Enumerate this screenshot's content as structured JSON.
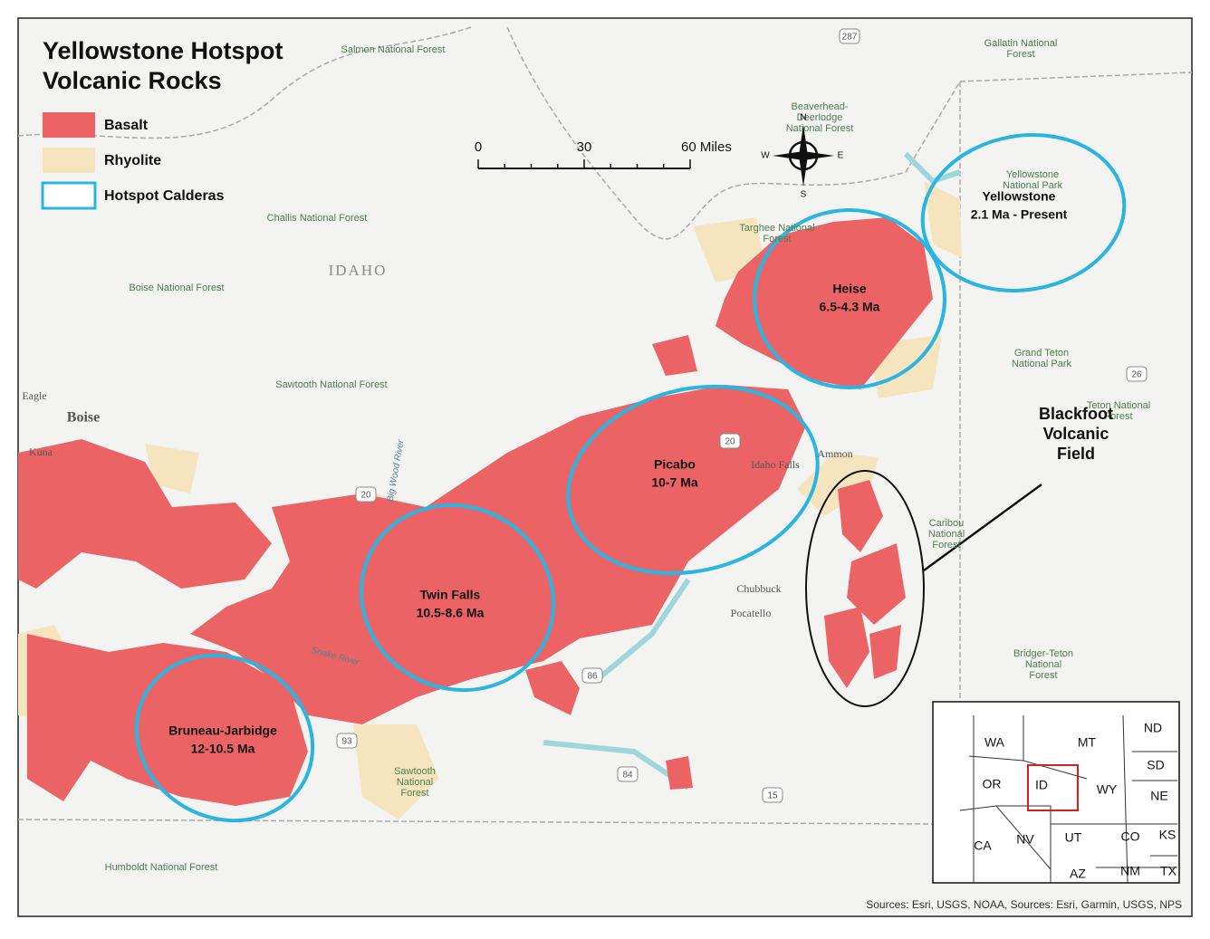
{
  "title": [
    "Yellowstone Hotspot",
    "Volcanic Rocks"
  ],
  "legend": [
    "Basalt",
    "Rhyolite",
    "Hotspot Calderas"
  ],
  "scale_bar": [
    "0",
    "30",
    "60 Miles"
  ],
  "compass": {
    "n": "N",
    "s": "S",
    "w": "W",
    "e": "E"
  },
  "calderas": [
    {
      "name": "Yellowstone",
      "age": "2.1 Ma - Present"
    },
    {
      "name": "Heise",
      "age": "6.5-4.3 Ma"
    },
    {
      "name": "Picabo",
      "age": "10-7 Ma"
    },
    {
      "name": "Twin Falls",
      "age": "10.5-8.6 Ma"
    },
    {
      "name": "Bruneau-Jarbidge",
      "age": "12-10.5 Ma"
    }
  ],
  "volcanic_field": [
    "Blackfoot",
    "Volcanic",
    "Field"
  ],
  "places": [
    [
      "Salmon National Forest"
    ],
    [
      "Challis National Forest"
    ],
    [
      "Boise National Forest"
    ],
    [
      "Sawtooth National Forest"
    ],
    [
      "IDAHO"
    ],
    [
      "Eagle"
    ],
    [
      "Boise"
    ],
    [
      "Kuna"
    ],
    [
      "Idaho Falls"
    ],
    [
      "Ammon"
    ],
    [
      "Chubbuck"
    ],
    [
      "Pocatello"
    ],
    [
      "Beaverhead-",
      "Deerlodge",
      "National Forest"
    ],
    [
      "Targhee National",
      "Forest"
    ],
    [
      "Gallatin National",
      "Forest"
    ],
    [
      "Yellowstone",
      "National Park"
    ],
    [
      "Grand Teton",
      "National Park"
    ],
    [
      "Teton National",
      "Forest"
    ],
    [
      "Caribou",
      "National",
      "Forest"
    ],
    [
      "Bridger-Teton",
      "National",
      "Forest"
    ],
    [
      "Sawtooth",
      "National",
      "Forest"
    ],
    [
      "Humboldt National Forest"
    ],
    [
      "Big Wood River"
    ],
    [
      "Snake River"
    ]
  ],
  "highways": [
    "287",
    "20",
    "20",
    "86",
    "93",
    "84",
    "15",
    "26"
  ],
  "inset": [
    "WA",
    "MT",
    "ND",
    "OR",
    "ID",
    "WY",
    "SD",
    "NE",
    "CA",
    "NV",
    "UT",
    "CO",
    "KS",
    "AZ",
    "NM",
    "TX"
  ],
  "sources": "Sources: Esri, USGS, NOAA, Sources: Esri, Garmin, USGS, NPS"
}
